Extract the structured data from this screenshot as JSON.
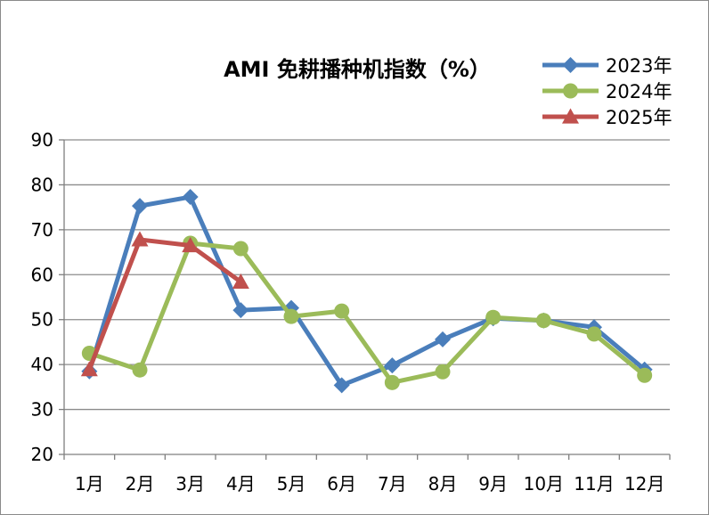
{
  "chart_data": {
    "type": "line",
    "title": "AMI 免耕播种机指数（%）",
    "xlabel": "",
    "ylabel": "",
    "categories": [
      "1月",
      "2月",
      "3月",
      "4月",
      "5月",
      "6月",
      "7月",
      "8月",
      "9月",
      "10月",
      "11月",
      "12月"
    ],
    "ylim": [
      20,
      90
    ],
    "yticks": [
      20,
      30,
      40,
      50,
      60,
      70,
      80,
      90
    ],
    "grid": true,
    "legend": "top-right",
    "series": [
      {
        "name": "2023年",
        "color": "#4a7ebb",
        "marker": "diamond",
        "values": [
          38.5,
          75.3,
          77.3,
          52.1,
          52.6,
          35.4,
          39.8,
          45.6,
          50.3,
          49.8,
          48.3,
          38.9
        ]
      },
      {
        "name": "2024年",
        "color": "#9bbb59",
        "marker": "circle",
        "values": [
          42.5,
          38.8,
          67.0,
          65.8,
          50.7,
          51.9,
          36.0,
          38.4,
          50.5,
          49.8,
          46.8,
          37.6
        ]
      },
      {
        "name": "2025年",
        "color": "#c0504d",
        "marker": "triangle",
        "values": [
          38.9,
          67.8,
          66.5,
          58.4,
          null,
          null,
          null,
          null,
          null,
          null,
          null,
          null
        ]
      }
    ]
  }
}
